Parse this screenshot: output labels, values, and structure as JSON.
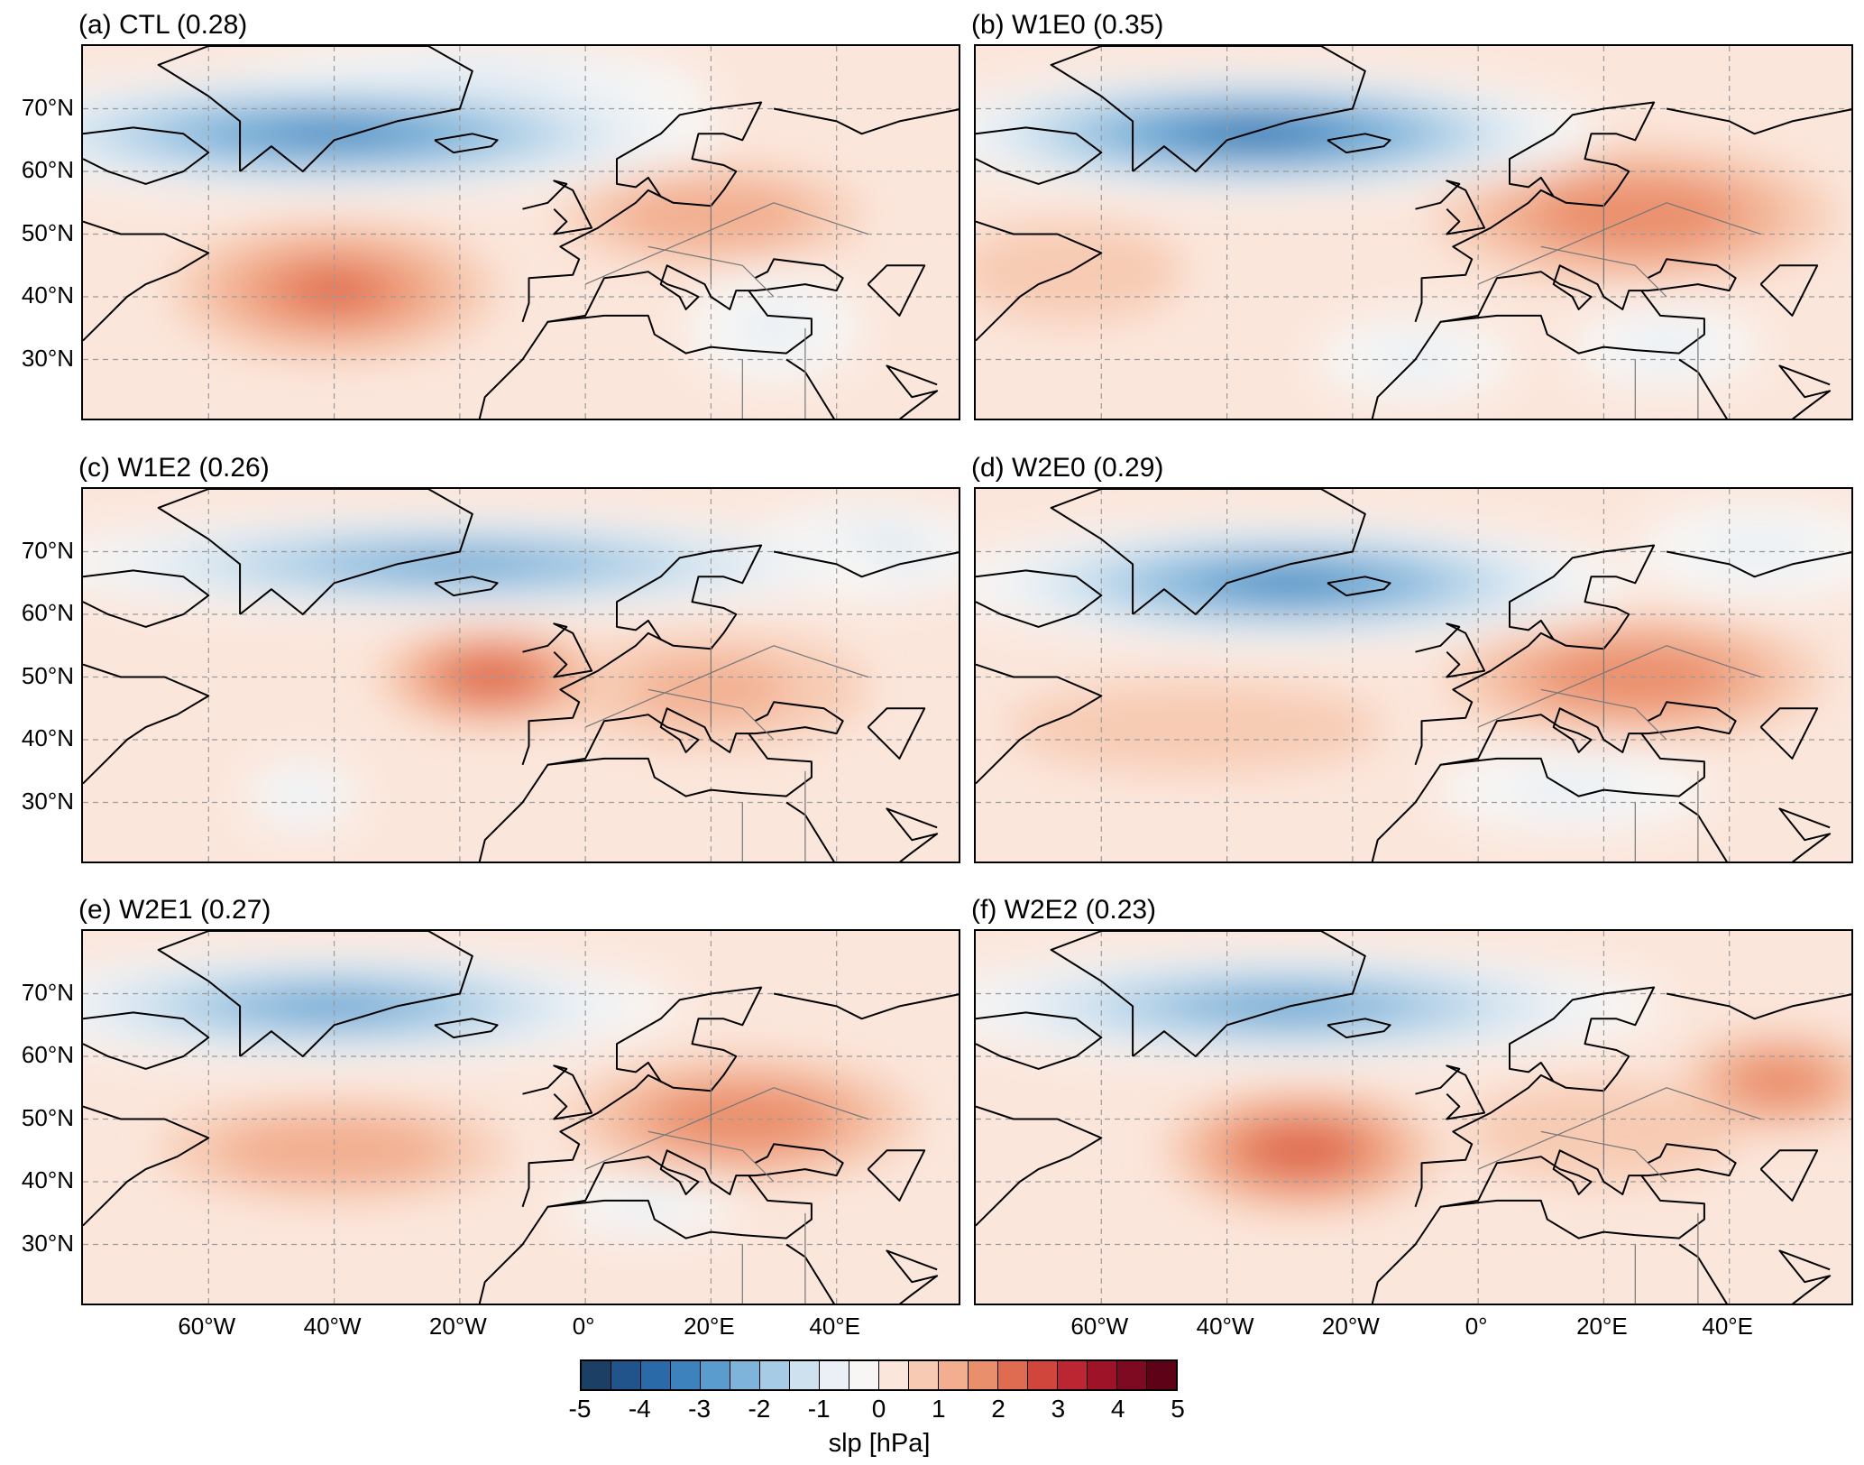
{
  "panels": [
    {
      "title": "(a) CTL (0.28)",
      "field": [
        {
          "lon": -40,
          "lat": 66,
          "v": -3.2,
          "rx": 62,
          "ry": 10
        },
        {
          "lon": -20,
          "lat": 72,
          "v": -1.6,
          "rx": 40,
          "ry": 9
        },
        {
          "lon": -40,
          "lat": 41,
          "v": 2.0,
          "rx": 26,
          "ry": 11
        },
        {
          "lon": 20,
          "lat": 53,
          "v": 1.1,
          "rx": 24,
          "ry": 8
        },
        {
          "lon": 30,
          "lat": 35,
          "v": -0.7,
          "rx": 14,
          "ry": 9
        }
      ]
    },
    {
      "title": "(b) W1E0 (0.35)",
      "field": [
        {
          "lon": -35,
          "lat": 66,
          "v": -3.6,
          "rx": 55,
          "ry": 10
        },
        {
          "lon": 25,
          "lat": 53,
          "v": 1.9,
          "rx": 32,
          "ry": 11
        },
        {
          "lon": -65,
          "lat": 44,
          "v": 0.9,
          "rx": 18,
          "ry": 8
        },
        {
          "lon": -10,
          "lat": 30,
          "v": -0.6,
          "rx": 16,
          "ry": 7
        },
        {
          "lon": 30,
          "lat": 32,
          "v": -0.7,
          "rx": 15,
          "ry": 7
        }
      ]
    },
    {
      "title": "(c) W1E2 (0.26)",
      "field": [
        {
          "lon": -20,
          "lat": 68,
          "v": -2.6,
          "rx": 70,
          "ry": 8
        },
        {
          "lon": -15,
          "lat": 50,
          "v": 2.1,
          "rx": 18,
          "ry": 8
        },
        {
          "lon": 20,
          "lat": 48,
          "v": 1.0,
          "rx": 25,
          "ry": 9
        },
        {
          "lon": -45,
          "lat": 31,
          "v": -0.8,
          "rx": 9,
          "ry": 6
        },
        {
          "lon": 45,
          "lat": 70,
          "v": -1.2,
          "rx": 20,
          "ry": 8
        }
      ]
    },
    {
      "title": "(d) W2E0 (0.29)",
      "field": [
        {
          "lon": -30,
          "lat": 65,
          "v": -3.3,
          "rx": 55,
          "ry": 10
        },
        {
          "lon": 25,
          "lat": 50,
          "v": 1.8,
          "rx": 30,
          "ry": 10
        },
        {
          "lon": -45,
          "lat": 42,
          "v": 0.9,
          "rx": 30,
          "ry": 7
        },
        {
          "lon": 15,
          "lat": 32,
          "v": -0.8,
          "rx": 22,
          "ry": 7
        },
        {
          "lon": 45,
          "lat": 70,
          "v": -1.0,
          "rx": 20,
          "ry": 8
        }
      ]
    },
    {
      "title": "(e) W2E1 (0.27)",
      "field": [
        {
          "lon": -40,
          "lat": 68,
          "v": -3.0,
          "rx": 55,
          "ry": 9
        },
        {
          "lon": 25,
          "lat": 50,
          "v": 1.8,
          "rx": 28,
          "ry": 10
        },
        {
          "lon": -40,
          "lat": 45,
          "v": 1.3,
          "rx": 28,
          "ry": 8
        },
        {
          "lon": 10,
          "lat": 36,
          "v": -0.6,
          "rx": 14,
          "ry": 5
        }
      ]
    },
    {
      "title": "(f) W2E2 (0.23)",
      "field": [
        {
          "lon": -30,
          "lat": 68,
          "v": -2.8,
          "rx": 60,
          "ry": 9
        },
        {
          "lon": -28,
          "lat": 45,
          "v": 2.2,
          "rx": 22,
          "ry": 10
        },
        {
          "lon": 48,
          "lat": 56,
          "v": 1.6,
          "rx": 16,
          "ry": 8
        },
        {
          "lon": 20,
          "lat": 48,
          "v": 0.8,
          "rx": 22,
          "ry": 8
        }
      ]
    }
  ],
  "lat_labels": [
    "70°N",
    "60°N",
    "50°N",
    "40°N",
    "30°N"
  ],
  "lon_labels": [
    "60°W",
    "40°W",
    "20°W",
    "0°",
    "20°E",
    "40°E"
  ],
  "map_extent": {
    "lon": [
      -80,
      60
    ],
    "lat": [
      20,
      80
    ]
  },
  "lat_ticks": [
    70,
    60,
    50,
    40,
    30
  ],
  "lon_ticks": [
    -60,
    -40,
    -20,
    0,
    20,
    40
  ],
  "colorbar": {
    "label": "slp [hPa]",
    "tick_labels": [
      "-5",
      "-4",
      "-3",
      "-2",
      "-1",
      "0",
      "1",
      "2",
      "3",
      "4",
      "5"
    ],
    "range": [
      -5,
      5
    ],
    "colors": [
      "#1b3f65",
      "#20548a",
      "#2a6aa8",
      "#3d82bc",
      "#5a9ccd",
      "#7fb4da",
      "#a6cbe5",
      "#cde1ef",
      "#eaf0f5",
      "#f7f6f4",
      "#fbe6db",
      "#f7cbb3",
      "#f2ae8f",
      "#ea8f6c",
      "#df6b50",
      "#d0463c",
      "#bc2632",
      "#9e1328",
      "#7e0a21",
      "#5e0317"
    ]
  }
}
